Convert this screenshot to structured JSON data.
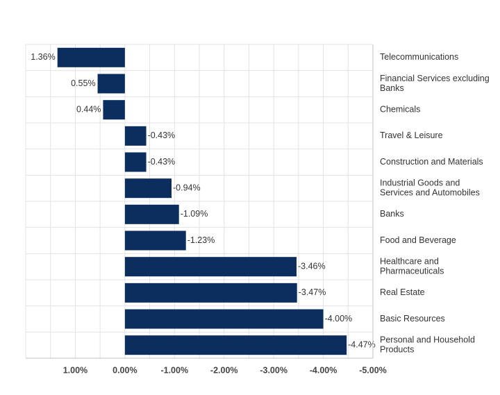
{
  "chart_data": {
    "type": "bar",
    "orientation": "horizontal",
    "x_axis_reversed": true,
    "category_axis_position": "right",
    "categories": [
      "Telecommunications",
      "Financial Services excluding Banks",
      "Chemicals",
      "Travel & Leisure",
      "Construction and Materials",
      "Industrial Goods and Services and Automobiles",
      "Banks",
      "Food and Beverage",
      "Healthcare and Pharmaceuticals",
      "Real Estate",
      "Basic Resources",
      "Personal and Household Products"
    ],
    "category_label_lines": [
      [
        "Telecommunications"
      ],
      [
        "Financial Services excluding",
        "Banks"
      ],
      [
        "Chemicals"
      ],
      [
        "Travel & Leisure"
      ],
      [
        "Construction and Materials"
      ],
      [
        "Industrial Goods and",
        "Services and Automobiles"
      ],
      [
        "Banks"
      ],
      [
        "Food and Beverage"
      ],
      [
        "Healthcare and",
        "Pharmaceuticals"
      ],
      [
        "Real Estate"
      ],
      [
        "Basic Resources"
      ],
      [
        "Personal and Household",
        "Products"
      ]
    ],
    "values": [
      1.36,
      0.55,
      0.44,
      -0.43,
      -0.43,
      -0.94,
      -1.09,
      -1.23,
      -3.46,
      -3.47,
      -4.0,
      -4.47
    ],
    "value_labels": [
      "1.36%",
      "0.55%",
      "0.44%",
      "-0.43%",
      "-0.43%",
      "-0.94%",
      "-1.09%",
      "-1.23%",
      "-3.46%",
      "-3.47%",
      "-4.00%",
      "-4.47%"
    ],
    "xlim": [
      2.0,
      -5.0
    ],
    "ticks": [
      1.0,
      0.0,
      -1.0,
      -2.0,
      -3.0,
      -4.0,
      -5.0
    ],
    "tick_labels": [
      "1.00%",
      "0.00%",
      "-1.00%",
      "-2.00%",
      "-3.00%",
      "-4.00%",
      "-5.00%"
    ],
    "grid": true,
    "title": "",
    "xlabel": "",
    "ylabel": "",
    "colors": {
      "bar": "#0b2e5f",
      "grid": "#e3e3e3",
      "axis": "#bfbfbf",
      "text": "#333333"
    }
  }
}
